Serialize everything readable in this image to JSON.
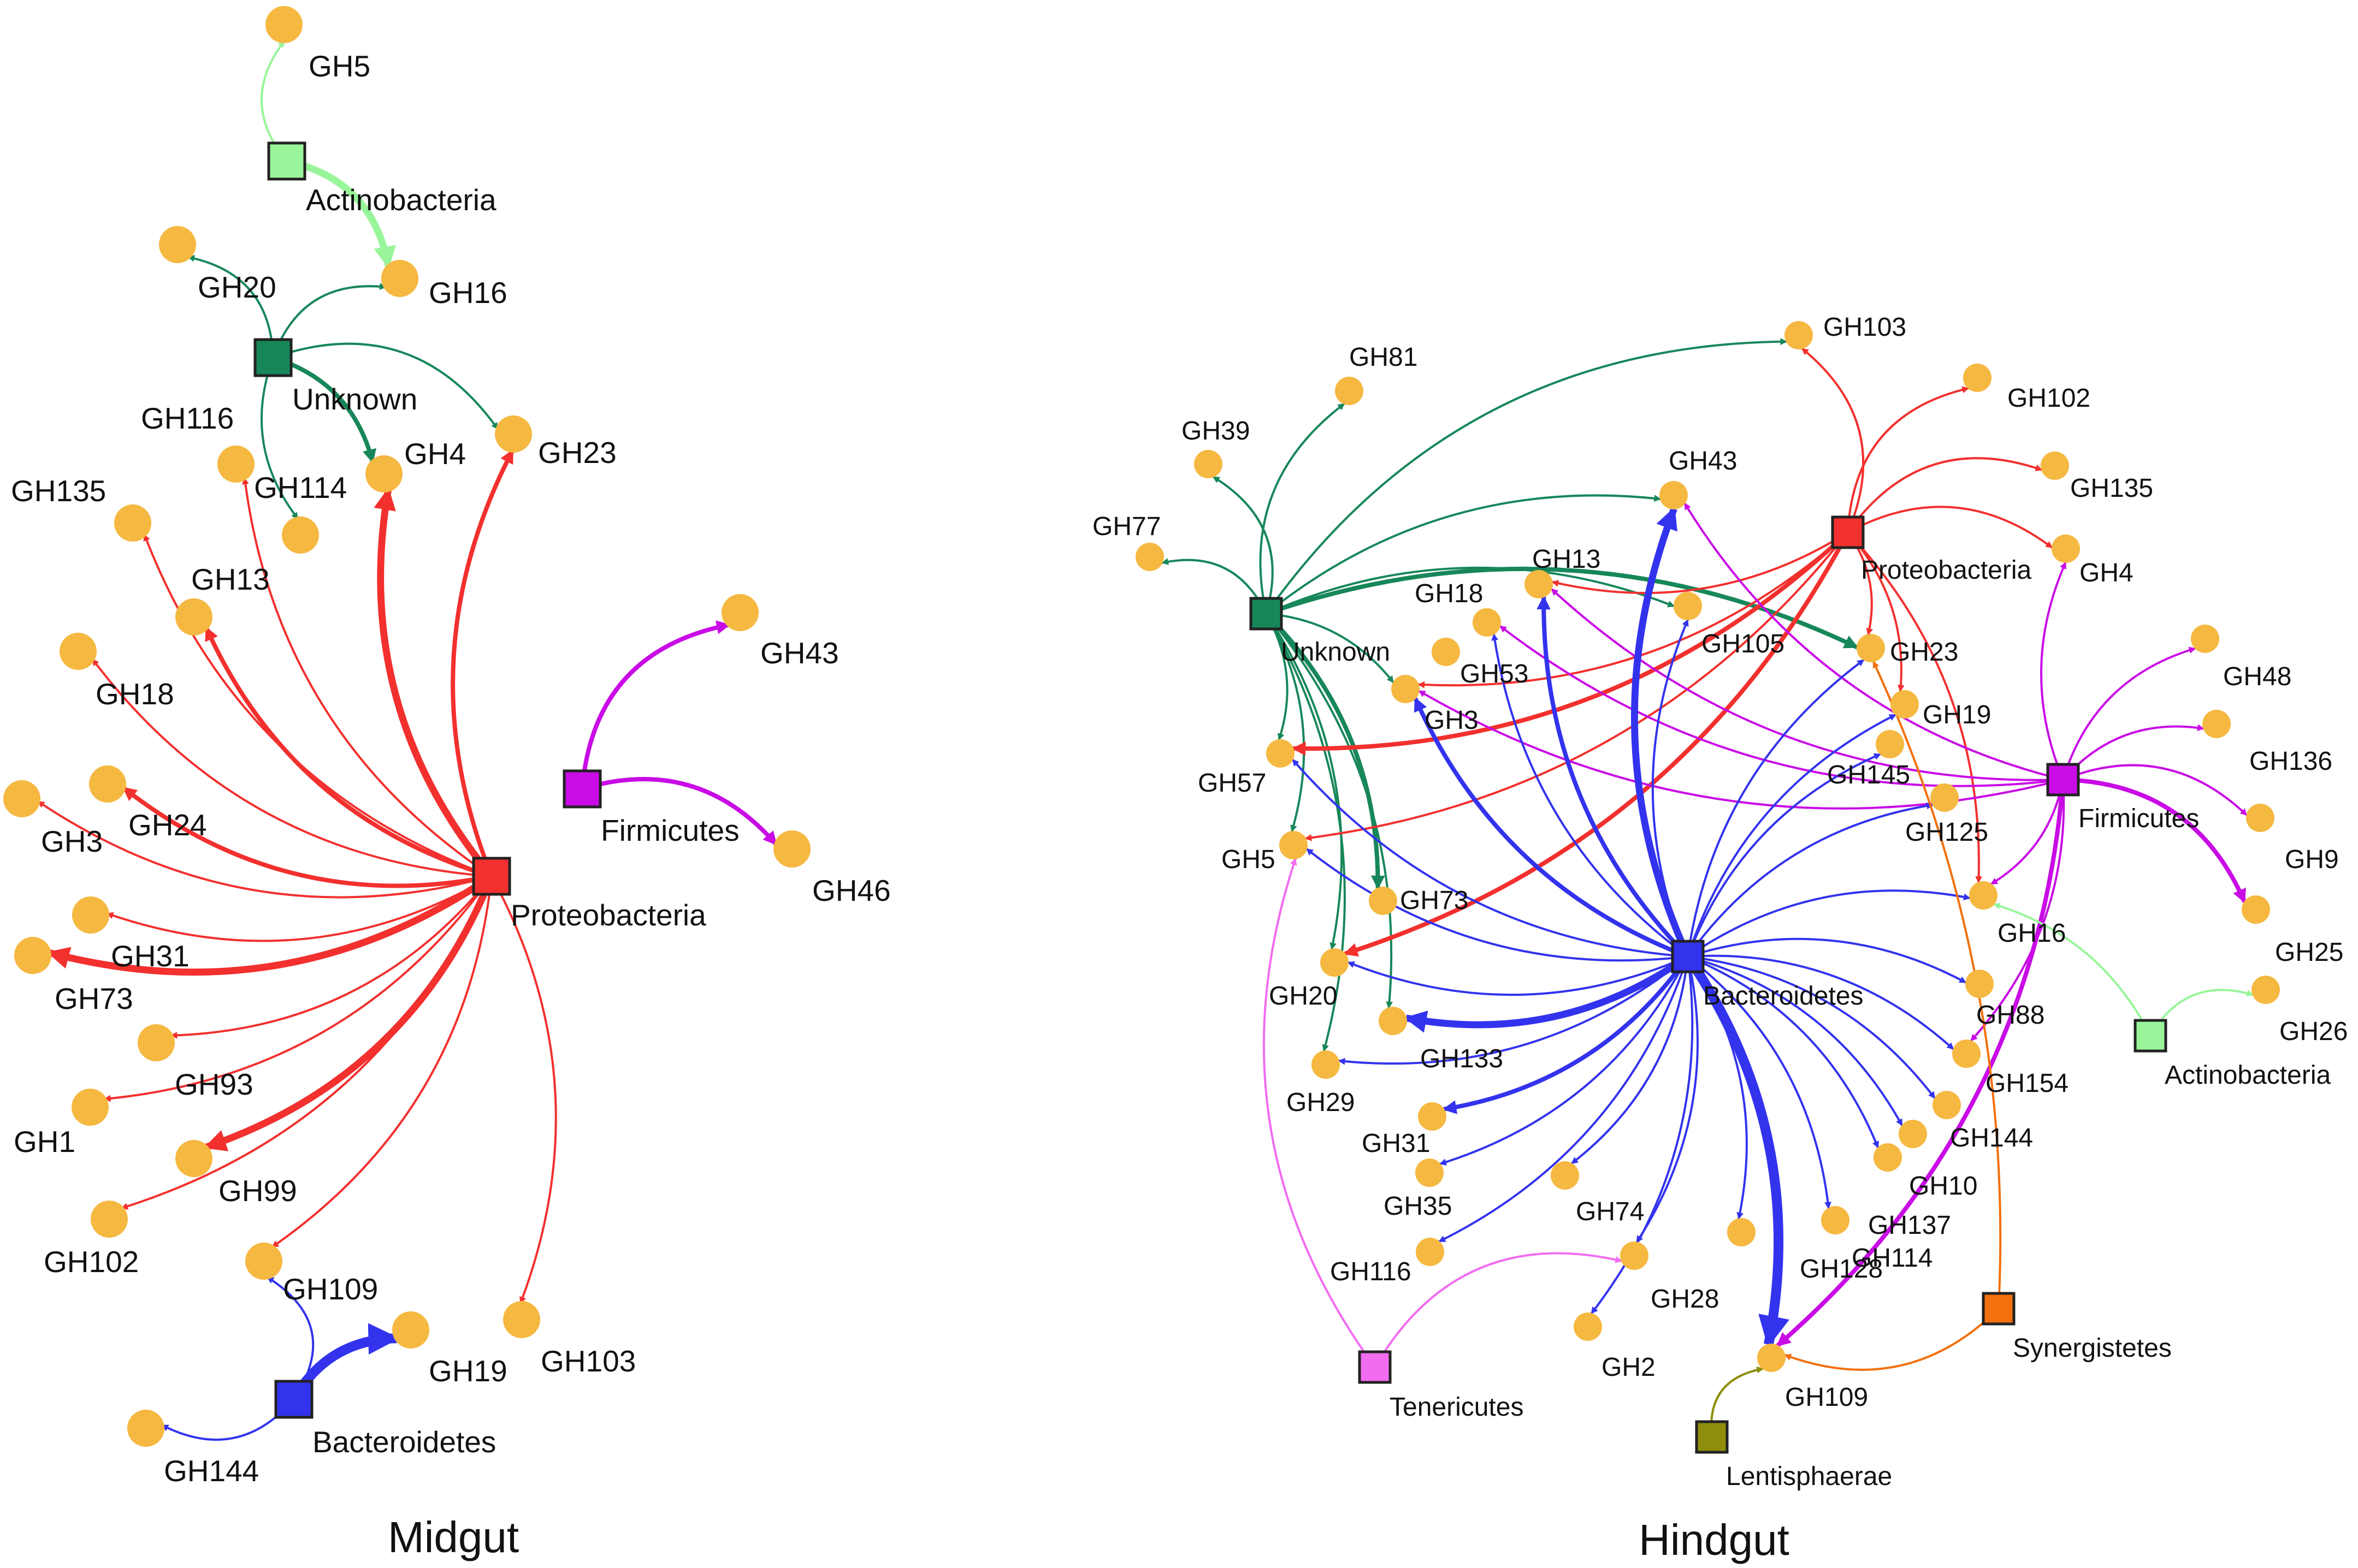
{
  "panels": [
    {
      "title": "Midgut",
      "phyla": [
        {
          "id": "actinobacteria",
          "label": "Actinobacteria",
          "color": "#99F59A"
        },
        {
          "id": "unknown",
          "label": "Unknown",
          "color": "#17875A"
        },
        {
          "id": "proteobacteria",
          "label": "Proteobacteria",
          "color": "#F2302E"
        },
        {
          "id": "firmicutes",
          "label": "Firmicutes",
          "color": "#C90BE6"
        },
        {
          "id": "bacteroidetes",
          "label": "Bacteroidetes",
          "color": "#3333EE"
        }
      ],
      "gh_families": [
        "GH5",
        "GH16",
        "GH20",
        "GH23",
        "GH4",
        "GH114",
        "GH116",
        "GH135",
        "GH13",
        "GH18",
        "GH3",
        "GH24",
        "GH31",
        "GH73",
        "GH93",
        "GH1",
        "GH99",
        "GH102",
        "GH109",
        "GH19",
        "GH103",
        "GH144",
        "GH43",
        "GH46"
      ],
      "links": [
        {
          "from": "actinobacteria",
          "to": "GH5",
          "weight": 1
        },
        {
          "from": "actinobacteria",
          "to": "GH16",
          "weight": 3
        },
        {
          "from": "unknown",
          "to": "GH20",
          "weight": 1
        },
        {
          "from": "unknown",
          "to": "GH16",
          "weight": 1
        },
        {
          "from": "unknown",
          "to": "GH23",
          "weight": 1
        },
        {
          "from": "unknown",
          "to": "GH4",
          "weight": 2
        },
        {
          "from": "unknown",
          "to": "GH114",
          "weight": 1
        },
        {
          "from": "proteobacteria",
          "to": "GH23",
          "weight": 2
        },
        {
          "from": "proteobacteria",
          "to": "GH4",
          "weight": 3
        },
        {
          "from": "proteobacteria",
          "to": "GH116",
          "weight": 1
        },
        {
          "from": "proteobacteria",
          "to": "GH135",
          "weight": 1
        },
        {
          "from": "proteobacteria",
          "to": "GH13",
          "weight": 2
        },
        {
          "from": "proteobacteria",
          "to": "GH18",
          "weight": 1
        },
        {
          "from": "proteobacteria",
          "to": "GH24",
          "weight": 2
        },
        {
          "from": "proteobacteria",
          "to": "GH3",
          "weight": 1
        },
        {
          "from": "proteobacteria",
          "to": "GH31",
          "weight": 1
        },
        {
          "from": "proteobacteria",
          "to": "GH73",
          "weight": 3
        },
        {
          "from": "proteobacteria",
          "to": "GH93",
          "weight": 1
        },
        {
          "from": "proteobacteria",
          "to": "GH1",
          "weight": 1
        },
        {
          "from": "proteobacteria",
          "to": "GH99",
          "weight": 3
        },
        {
          "from": "proteobacteria",
          "to": "GH102",
          "weight": 1
        },
        {
          "from": "proteobacteria",
          "to": "GH109",
          "weight": 1
        },
        {
          "from": "proteobacteria",
          "to": "GH103",
          "weight": 1
        },
        {
          "from": "firmicutes",
          "to": "GH43",
          "weight": 2
        },
        {
          "from": "firmicutes",
          "to": "GH46",
          "weight": 2
        },
        {
          "from": "bacteroidetes",
          "to": "GH109",
          "weight": 1
        },
        {
          "from": "bacteroidetes",
          "to": "GH19",
          "weight": 4
        },
        {
          "from": "bacteroidetes",
          "to": "GH144",
          "weight": 1
        }
      ]
    },
    {
      "title": "Hindgut",
      "phyla": [
        {
          "id": "unknown",
          "label": "Unknown",
          "color": "#17875A"
        },
        {
          "id": "proteobacteria",
          "label": "Proteobacteria",
          "color": "#F2302E"
        },
        {
          "id": "firmicutes",
          "label": "Firmicutes",
          "color": "#C90BE6"
        },
        {
          "id": "bacteroidetes",
          "label": "Bacteroidetes",
          "color": "#3333EE"
        },
        {
          "id": "actinobacteria",
          "label": "Actinobacteria",
          "color": "#99F59A"
        },
        {
          "id": "tenericutes",
          "label": "Tenericutes",
          "color": "#F26CF0"
        },
        {
          "id": "synergistetes",
          "label": "Synergistetes",
          "color": "#F2700D"
        },
        {
          "id": "lentisphaerae",
          "label": "Lentisphaerae",
          "color": "#8E8E0A"
        }
      ],
      "gh_families": [
        "GH103",
        "GH81",
        "GH39",
        "GH77",
        "GH102",
        "GH135",
        "GH4",
        "GH43",
        "GH13",
        "GH18",
        "GH53",
        "GH105",
        "GH23",
        "GH3",
        "GH19",
        "GH145",
        "GH125",
        "GH48",
        "GH136",
        "GH9",
        "GH25",
        "GH26",
        "GH57",
        "GH5",
        "GH73",
        "GH16",
        "GH20",
        "GH88",
        "GH133",
        "GH154",
        "GH29",
        "GH144",
        "GH31",
        "GH10",
        "GH35",
        "GH74",
        "GH137",
        "GH114",
        "GH116",
        "GH28",
        "GH128",
        "GH2",
        "GH109"
      ],
      "links": [
        {
          "from": "unknown",
          "to": "GH103",
          "weight": 1
        },
        {
          "from": "unknown",
          "to": "GH81",
          "weight": 1
        },
        {
          "from": "unknown",
          "to": "GH39",
          "weight": 1
        },
        {
          "from": "unknown",
          "to": "GH77",
          "weight": 1
        },
        {
          "from": "unknown",
          "to": "GH43",
          "weight": 1
        },
        {
          "from": "unknown",
          "to": "GH105",
          "weight": 1
        },
        {
          "from": "unknown",
          "to": "GH23",
          "weight": 2
        },
        {
          "from": "unknown",
          "to": "GH3",
          "weight": 1
        },
        {
          "from": "unknown",
          "to": "GH57",
          "weight": 1
        },
        {
          "from": "unknown",
          "to": "GH5",
          "weight": 1
        },
        {
          "from": "unknown",
          "to": "GH73",
          "weight": 2
        },
        {
          "from": "unknown",
          "to": "GH20",
          "weight": 1
        },
        {
          "from": "unknown",
          "to": "GH133",
          "weight": 1
        },
        {
          "from": "unknown",
          "to": "GH29",
          "weight": 1
        },
        {
          "from": "proteobacteria",
          "to": "GH103",
          "weight": 1
        },
        {
          "from": "proteobacteria",
          "to": "GH102",
          "weight": 1
        },
        {
          "from": "proteobacteria",
          "to": "GH135",
          "weight": 1
        },
        {
          "from": "proteobacteria",
          "to": "GH4",
          "weight": 1
        },
        {
          "from": "proteobacteria",
          "to": "GH13",
          "weight": 1
        },
        {
          "from": "proteobacteria",
          "to": "GH23",
          "weight": 1
        },
        {
          "from": "proteobacteria",
          "to": "GH19",
          "weight": 1
        },
        {
          "from": "proteobacteria",
          "to": "GH16",
          "weight": 1
        },
        {
          "from": "proteobacteria",
          "to": "GH57",
          "weight": 2
        },
        {
          "from": "proteobacteria",
          "to": "GH5",
          "weight": 1
        },
        {
          "from": "proteobacteria",
          "to": "GH20",
          "weight": 2
        },
        {
          "from": "proteobacteria",
          "to": "GH3",
          "weight": 1
        },
        {
          "from": "firmicutes",
          "to": "GH48",
          "weight": 1
        },
        {
          "from": "firmicutes",
          "to": "GH136",
          "weight": 1
        },
        {
          "from": "firmicutes",
          "to": "GH9",
          "weight": 1
        },
        {
          "from": "firmicutes",
          "to": "GH25",
          "weight": 2
        },
        {
          "from": "firmicutes",
          "to": "GH4",
          "weight": 1
        },
        {
          "from": "firmicutes",
          "to": "GH43",
          "weight": 1
        },
        {
          "from": "firmicutes",
          "to": "GH13",
          "weight": 1
        },
        {
          "from": "firmicutes",
          "to": "GH18",
          "weight": 1
        },
        {
          "from": "firmicutes",
          "to": "GH16",
          "weight": 1
        },
        {
          "from": "firmicutes",
          "to": "GH154",
          "weight": 1
        },
        {
          "from": "firmicutes",
          "to": "GH109",
          "weight": 2
        },
        {
          "from": "firmicutes",
          "to": "GH3",
          "weight": 1
        },
        {
          "from": "bacteroidetes",
          "to": "GH43",
          "weight": 3
        },
        {
          "from": "bacteroidetes",
          "to": "GH13",
          "weight": 2
        },
        {
          "from": "bacteroidetes",
          "to": "GH18",
          "weight": 1
        },
        {
          "from": "bacteroidetes",
          "to": "GH105",
          "weight": 1
        },
        {
          "from": "bacteroidetes",
          "to": "GH23",
          "weight": 1
        },
        {
          "from": "bacteroidetes",
          "to": "GH19",
          "weight": 1
        },
        {
          "from": "bacteroidetes",
          "to": "GH145",
          "weight": 1
        },
        {
          "from": "bacteroidetes",
          "to": "GH125",
          "weight": 1
        },
        {
          "from": "bacteroidetes",
          "to": "GH3",
          "weight": 2
        },
        {
          "from": "bacteroidetes",
          "to": "GH57",
          "weight": 1
        },
        {
          "from": "bacteroidetes",
          "to": "GH5",
          "weight": 1
        },
        {
          "from": "bacteroidetes",
          "to": "GH16",
          "weight": 1
        },
        {
          "from": "bacteroidetes",
          "to": "GH20",
          "weight": 1
        },
        {
          "from": "bacteroidetes",
          "to": "GH88",
          "weight": 1
        },
        {
          "from": "bacteroidetes",
          "to": "GH133",
          "weight": 3
        },
        {
          "from": "bacteroidetes",
          "to": "GH154",
          "weight": 1
        },
        {
          "from": "bacteroidetes",
          "to": "GH29",
          "weight": 1
        },
        {
          "from": "bacteroidetes",
          "to": "GH144",
          "weight": 1
        },
        {
          "from": "bacteroidetes",
          "to": "GH31",
          "weight": 2
        },
        {
          "from": "bacteroidetes",
          "to": "GH10",
          "weight": 1
        },
        {
          "from": "bacteroidetes",
          "to": "GH35",
          "weight": 1
        },
        {
          "from": "bacteroidetes",
          "to": "GH74",
          "weight": 1
        },
        {
          "from": "bacteroidetes",
          "to": "GH137",
          "weight": 1
        },
        {
          "from": "bacteroidetes",
          "to": "GH114",
          "weight": 1
        },
        {
          "from": "bacteroidetes",
          "to": "GH116",
          "weight": 1
        },
        {
          "from": "bacteroidetes",
          "to": "GH28",
          "weight": 1
        },
        {
          "from": "bacteroidetes",
          "to": "GH128",
          "weight": 1
        },
        {
          "from": "bacteroidetes",
          "to": "GH2",
          "weight": 1
        },
        {
          "from": "bacteroidetes",
          "to": "GH109",
          "weight": 4
        },
        {
          "from": "actinobacteria",
          "to": "GH26",
          "weight": 1
        },
        {
          "from": "actinobacteria",
          "to": "GH16",
          "weight": 1
        },
        {
          "from": "tenericutes",
          "to": "GH5",
          "weight": 1
        },
        {
          "from": "tenericutes",
          "to": "GH28",
          "weight": 1
        },
        {
          "from": "synergistetes",
          "to": "GH23",
          "weight": 1
        },
        {
          "from": "synergistetes",
          "to": "GH109",
          "weight": 1
        },
        {
          "from": "lentisphaerae",
          "to": "GH109",
          "weight": 1
        }
      ]
    }
  ]
}
